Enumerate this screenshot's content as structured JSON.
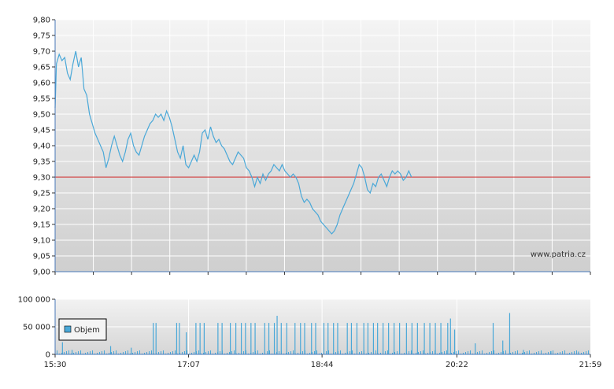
{
  "chart_data": [
    {
      "type": "line",
      "series": [
        {
          "color": "#4aa8d8",
          "points": [
            [
              "15:30",
              9.52
            ],
            [
              "15:31",
              9.66
            ],
            [
              "15:33",
              9.69
            ],
            [
              "15:35",
              9.67
            ],
            [
              "15:37",
              9.68
            ],
            [
              "15:39",
              9.63
            ],
            [
              "15:41",
              9.61
            ],
            [
              "15:43",
              9.66
            ],
            [
              "15:45",
              9.7
            ],
            [
              "15:47",
              9.65
            ],
            [
              "15:49",
              9.68
            ],
            [
              "15:51",
              9.58
            ],
            [
              "15:53",
              9.56
            ],
            [
              "15:55",
              9.5
            ],
            [
              "15:57",
              9.47
            ],
            [
              "15:59",
              9.44
            ],
            [
              "16:01",
              9.42
            ],
            [
              "16:03",
              9.4
            ],
            [
              "16:05",
              9.38
            ],
            [
              "16:07",
              9.33
            ],
            [
              "16:09",
              9.36
            ],
            [
              "16:11",
              9.4
            ],
            [
              "16:13",
              9.43
            ],
            [
              "16:15",
              9.4
            ],
            [
              "16:17",
              9.37
            ],
            [
              "16:19",
              9.35
            ],
            [
              "16:21",
              9.38
            ],
            [
              "16:23",
              9.42
            ],
            [
              "16:25",
              9.44
            ],
            [
              "16:27",
              9.4
            ],
            [
              "16:29",
              9.38
            ],
            [
              "16:31",
              9.37
            ],
            [
              "16:33",
              9.4
            ],
            [
              "16:35",
              9.43
            ],
            [
              "16:37",
              9.45
            ],
            [
              "16:39",
              9.47
            ],
            [
              "16:41",
              9.48
            ],
            [
              "16:43",
              9.5
            ],
            [
              "16:45",
              9.49
            ],
            [
              "16:47",
              9.5
            ],
            [
              "16:49",
              9.48
            ],
            [
              "16:51",
              9.51
            ],
            [
              "16:53",
              9.49
            ],
            [
              "16:55",
              9.46
            ],
            [
              "16:57",
              9.42
            ],
            [
              "16:59",
              9.38
            ],
            [
              "17:01",
              9.36
            ],
            [
              "17:03",
              9.4
            ],
            [
              "17:05",
              9.34
            ],
            [
              "17:07",
              9.33
            ],
            [
              "17:09",
              9.35
            ],
            [
              "17:11",
              9.37
            ],
            [
              "17:13",
              9.35
            ],
            [
              "17:15",
              9.38
            ],
            [
              "17:17",
              9.44
            ],
            [
              "17:19",
              9.45
            ],
            [
              "17:21",
              9.42
            ],
            [
              "17:23",
              9.46
            ],
            [
              "17:25",
              9.43
            ],
            [
              "17:27",
              9.41
            ],
            [
              "17:29",
              9.42
            ],
            [
              "17:31",
              9.4
            ],
            [
              "17:33",
              9.39
            ],
            [
              "17:35",
              9.37
            ],
            [
              "17:37",
              9.35
            ],
            [
              "17:39",
              9.34
            ],
            [
              "17:41",
              9.36
            ],
            [
              "17:43",
              9.38
            ],
            [
              "17:45",
              9.37
            ],
            [
              "17:47",
              9.36
            ],
            [
              "17:49",
              9.33
            ],
            [
              "17:51",
              9.32
            ],
            [
              "17:53",
              9.3
            ],
            [
              "17:55",
              9.27
            ],
            [
              "17:57",
              9.3
            ],
            [
              "17:59",
              9.28
            ],
            [
              "18:01",
              9.31
            ],
            [
              "18:03",
              9.29
            ],
            [
              "18:05",
              9.31
            ],
            [
              "18:07",
              9.32
            ],
            [
              "18:09",
              9.34
            ],
            [
              "18:11",
              9.33
            ],
            [
              "18:13",
              9.32
            ],
            [
              "18:15",
              9.34
            ],
            [
              "18:17",
              9.32
            ],
            [
              "18:19",
              9.31
            ],
            [
              "18:21",
              9.3
            ],
            [
              "18:23",
              9.31
            ],
            [
              "18:25",
              9.3
            ],
            [
              "18:27",
              9.28
            ],
            [
              "18:29",
              9.24
            ],
            [
              "18:31",
              9.22
            ],
            [
              "18:33",
              9.23
            ],
            [
              "18:35",
              9.22
            ],
            [
              "18:37",
              9.2
            ],
            [
              "18:39",
              9.19
            ],
            [
              "18:41",
              9.18
            ],
            [
              "18:43",
              9.16
            ],
            [
              "18:45",
              9.15
            ],
            [
              "18:47",
              9.14
            ],
            [
              "18:49",
              9.13
            ],
            [
              "18:51",
              9.12
            ],
            [
              "18:53",
              9.13
            ],
            [
              "18:55",
              9.15
            ],
            [
              "18:57",
              9.18
            ],
            [
              "18:59",
              9.2
            ],
            [
              "19:01",
              9.22
            ],
            [
              "19:03",
              9.24
            ],
            [
              "19:05",
              9.26
            ],
            [
              "19:07",
              9.28
            ],
            [
              "19:09",
              9.31
            ],
            [
              "19:11",
              9.34
            ],
            [
              "19:13",
              9.33
            ],
            [
              "19:15",
              9.3
            ],
            [
              "19:17",
              9.26
            ],
            [
              "19:19",
              9.25
            ],
            [
              "19:21",
              9.28
            ],
            [
              "19:23",
              9.27
            ],
            [
              "19:25",
              9.3
            ],
            [
              "19:27",
              9.31
            ],
            [
              "19:29",
              9.29
            ],
            [
              "19:31",
              9.27
            ],
            [
              "19:33",
              9.3
            ],
            [
              "19:35",
              9.32
            ],
            [
              "19:37",
              9.31
            ],
            [
              "19:39",
              9.32
            ],
            [
              "19:41",
              9.31
            ],
            [
              "19:43",
              9.29
            ],
            [
              "19:45",
              9.3
            ],
            [
              "19:47",
              9.32
            ],
            [
              "19:49",
              9.3
            ]
          ]
        }
      ],
      "reference_line": {
        "y": 9.3,
        "color": "#d02020"
      },
      "ylim": [
        9.0,
        9.8
      ],
      "yticks": [
        "9,00",
        "9,05",
        "9,10",
        "9,15",
        "9,20",
        "9,25",
        "9,30",
        "9,35",
        "9,40",
        "9,45",
        "9,50",
        "9,55",
        "9,60",
        "9,65",
        "9,70",
        "9,75",
        "9,80"
      ],
      "grid": true,
      "watermark": "www.patria.cz"
    },
    {
      "type": "bar",
      "legend": {
        "label": "Objem",
        "color": "#4aa8d8",
        "placement": "left"
      },
      "ylim": [
        0,
        100000
      ],
      "yticks": [
        "0",
        "50 000",
        "100 000"
      ],
      "xticks": [
        "15:30",
        "17:07",
        "18:44",
        "20:22",
        "21:59"
      ],
      "x_range": [
        "15:30",
        "21:59"
      ],
      "grid": true,
      "bars": [
        [
          "15:35",
          22000
        ],
        [
          "15:42",
          8000
        ],
        [
          "16:10",
          15000
        ],
        [
          "16:25",
          12000
        ],
        [
          "16:41",
          57000
        ],
        [
          "16:43",
          57000
        ],
        [
          "16:58",
          57000
        ],
        [
          "17:00",
          57000
        ],
        [
          "17:05",
          40000
        ],
        [
          "17:12",
          57000
        ],
        [
          "17:15",
          57000
        ],
        [
          "17:18",
          57000
        ],
        [
          "17:28",
          57000
        ],
        [
          "17:31",
          57000
        ],
        [
          "17:37",
          57000
        ],
        [
          "17:41",
          57000
        ],
        [
          "17:45",
          57000
        ],
        [
          "17:48",
          57000
        ],
        [
          "17:52",
          57000
        ],
        [
          "17:55",
          57000
        ],
        [
          "18:02",
          57000
        ],
        [
          "18:05",
          57000
        ],
        [
          "18:09",
          57000
        ],
        [
          "18:11",
          70000
        ],
        [
          "18:14",
          57000
        ],
        [
          "18:18",
          57000
        ],
        [
          "18:24",
          57000
        ],
        [
          "18:28",
          57000
        ],
        [
          "18:31",
          57000
        ],
        [
          "18:36",
          57000
        ],
        [
          "18:39",
          57000
        ],
        [
          "18:45",
          57000
        ],
        [
          "18:48",
          57000
        ],
        [
          "18:52",
          57000
        ],
        [
          "18:55",
          57000
        ],
        [
          "19:02",
          57000
        ],
        [
          "19:05",
          57000
        ],
        [
          "19:09",
          57000
        ],
        [
          "19:14",
          57000
        ],
        [
          "19:17",
          57000
        ],
        [
          "19:21",
          57000
        ],
        [
          "19:24",
          57000
        ],
        [
          "19:28",
          57000
        ],
        [
          "19:32",
          57000
        ],
        [
          "19:36",
          57000
        ],
        [
          "19:40",
          57000
        ],
        [
          "19:45",
          57000
        ],
        [
          "19:49",
          57000
        ],
        [
          "19:53",
          57000
        ],
        [
          "19:58",
          57000
        ],
        [
          "20:02",
          57000
        ],
        [
          "20:06",
          57000
        ],
        [
          "20:10",
          57000
        ],
        [
          "20:15",
          57000
        ],
        [
          "20:17",
          65000
        ],
        [
          "20:20",
          45000
        ],
        [
          "20:35",
          20000
        ],
        [
          "20:48",
          57000
        ],
        [
          "20:55",
          25000
        ],
        [
          "21:00",
          75000
        ],
        [
          "21:10",
          8000
        ],
        [
          "21:30",
          6000
        ],
        [
          "21:50",
          5000
        ]
      ]
    }
  ]
}
